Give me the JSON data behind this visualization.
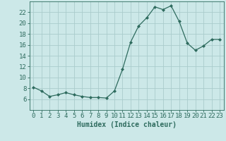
{
  "x": [
    0,
    1,
    2,
    3,
    4,
    5,
    6,
    7,
    8,
    9,
    10,
    11,
    12,
    13,
    14,
    15,
    16,
    17,
    18,
    19,
    20,
    21,
    22,
    23
  ],
  "y": [
    8.2,
    7.5,
    6.5,
    6.8,
    7.2,
    6.8,
    6.5,
    6.3,
    6.3,
    6.2,
    7.5,
    11.5,
    16.5,
    19.5,
    21.0,
    23.0,
    22.5,
    23.2,
    20.3,
    16.3,
    15.0,
    15.8,
    17.0,
    17.0
  ],
  "line_color": "#2e6b5e",
  "marker": "D",
  "marker_size": 2.0,
  "bg_color": "#cce8e8",
  "grid_color": "#aacccc",
  "xlabel": "Humidex (Indice chaleur)",
  "xlim": [
    -0.5,
    23.5
  ],
  "ylim": [
    4,
    24
  ],
  "yticks": [
    6,
    8,
    10,
    12,
    14,
    16,
    18,
    20,
    22
  ],
  "xticks": [
    0,
    1,
    2,
    3,
    4,
    5,
    6,
    7,
    8,
    9,
    10,
    11,
    12,
    13,
    14,
    15,
    16,
    17,
    18,
    19,
    20,
    21,
    22,
    23
  ],
  "tick_color": "#2e6b5e",
  "label_fontsize": 7,
  "tick_fontsize": 6.5
}
